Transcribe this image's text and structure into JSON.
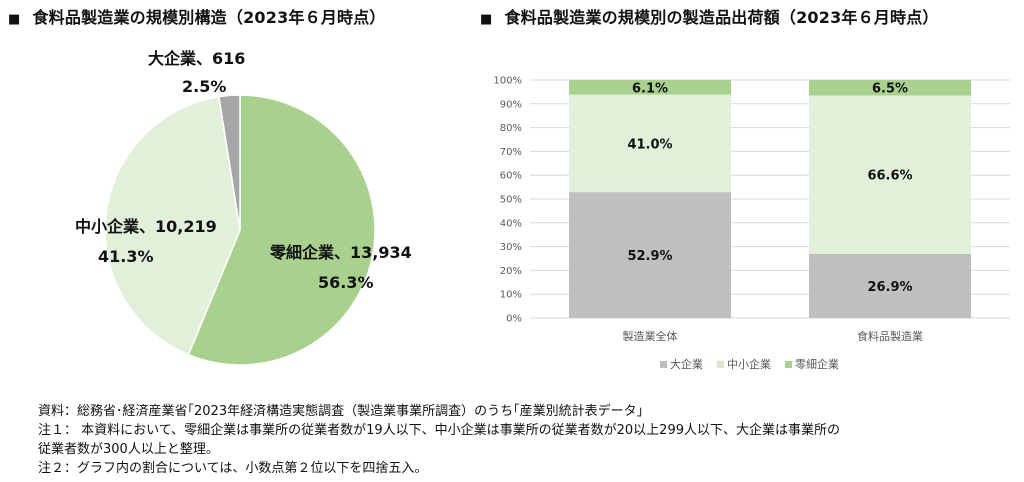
{
  "left_chart": {
    "heading": "食料品製造業の規模別構造（2023年６月時点）"
  },
  "right_chart": {
    "heading": "食料品製造業の規模別の製造品出荷額（2023年６月時点）"
  },
  "heading_marker": "■",
  "notes": {
    "source": "資料：総務省･経済産業省｢2023年経済構造実態調査（製造業事業所調査）のうち｢産業別統計表データ｣",
    "note1_line1": "注１：  本資料において、零細企業は事業所の従業者数が19人以下、中小企業は事業所の従業者数が20以上299人以下、大企業は事業所の",
    "note1_line2": "従業者数が300人以上と整理。",
    "note2": "注２：グラフ内の割合については、小数点第２位以下を四捨五入。"
  },
  "chart_data": [
    {
      "type": "pie",
      "title": "食料品製造業の規模別構造（2023年６月時点）",
      "slices": [
        {
          "name": "零細企業",
          "count": 13934,
          "count_label": "13,934",
          "percent": 56.3,
          "percent_label": "56.3%",
          "color": "#a9d18e"
        },
        {
          "name": "中小企業",
          "count": 10219,
          "count_label": "10,219",
          "percent": 41.3,
          "percent_label": "41.3%",
          "color": "#e2f0d9"
        },
        {
          "name": "大企業",
          "count": 616,
          "count_label": "616",
          "percent": 2.5,
          "percent_label": "2.5%",
          "color": "#a6a6a6"
        }
      ]
    },
    {
      "type": "bar",
      "stacked": true,
      "title": "食料品製造業の規模別の製造品出荷額（2023年６月時点）",
      "categories": [
        "製造業全体",
        "食料品製造業"
      ],
      "ylim": [
        0,
        100
      ],
      "yticks": [
        "0%",
        "10%",
        "20%",
        "30%",
        "40%",
        "50%",
        "60%",
        "70%",
        "80%",
        "90%",
        "100%"
      ],
      "grid": true,
      "legend_position": "bottom",
      "series": [
        {
          "name": "大企業",
          "color": "#bfbfbf",
          "values": [
            52.9,
            26.9
          ],
          "labels": [
            "52.9%",
            "26.9%"
          ]
        },
        {
          "name": "中小企業",
          "color": "#e2f0d9",
          "values": [
            41.0,
            66.6
          ],
          "labels": [
            "41.0%",
            "66.6%"
          ]
        },
        {
          "name": "零細企業",
          "color": "#a9d18e",
          "values": [
            6.1,
            6.5
          ],
          "labels": [
            "6.1%",
            "6.5%"
          ]
        }
      ]
    }
  ]
}
